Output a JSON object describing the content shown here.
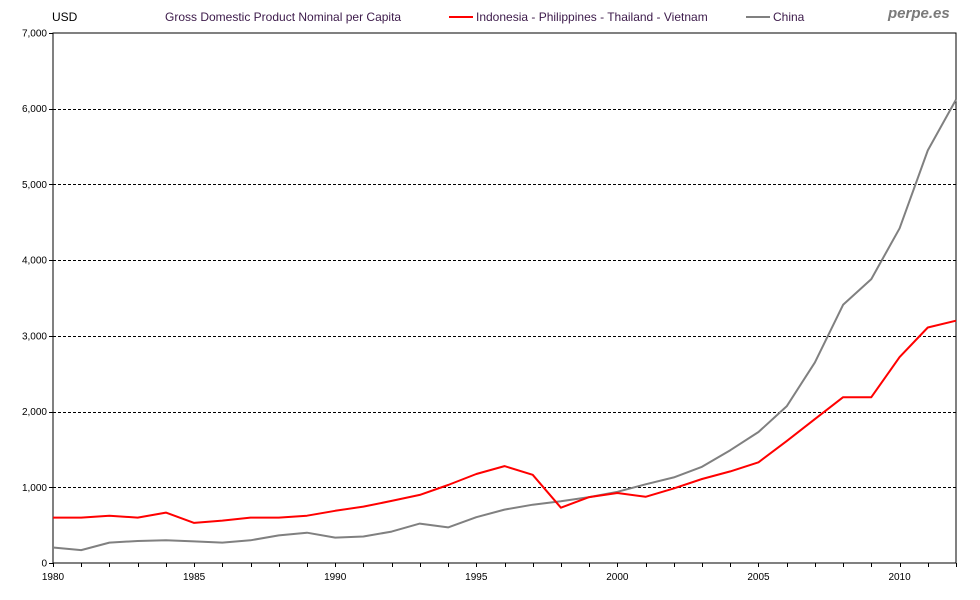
{
  "chart_data": {
    "type": "line",
    "title": "Gross Domestic Product Nominal per Capita",
    "ylabel": "USD",
    "xlabel": "",
    "xlim": [
      1980,
      2012
    ],
    "ylim": [
      0,
      7000
    ],
    "x_ticks": [
      1980,
      1985,
      1990,
      1995,
      2000,
      2005,
      2010
    ],
    "y_ticks": [
      0,
      1000,
      2000,
      3000,
      4000,
      5000,
      6000,
      7000
    ],
    "y_tick_labels": [
      "0",
      "1,000",
      "2,000",
      "3,000",
      "4,000",
      "5,000",
      "6,000",
      "7,000"
    ],
    "grid": "horizontal dashed",
    "legend_position": "top",
    "x": [
      1980,
      1981,
      1982,
      1983,
      1984,
      1985,
      1986,
      1987,
      1988,
      1989,
      1990,
      1991,
      1992,
      1993,
      1994,
      1995,
      1996,
      1997,
      1998,
      1999,
      2000,
      2001,
      2002,
      2003,
      2004,
      2005,
      2006,
      2007,
      2008,
      2009,
      2010,
      2011,
      2012
    ],
    "series": [
      {
        "name": "Indonesia - Philippines - Thailand - Vietnam",
        "color": "#ff0000",
        "values": [
          600,
          600,
          625,
          600,
          665,
          530,
          560,
          600,
          600,
          625,
          690,
          745,
          820,
          900,
          1030,
          1175,
          1280,
          1165,
          730,
          870,
          925,
          875,
          985,
          1110,
          1210,
          1330,
          1610,
          1900,
          2190,
          2190,
          2720,
          3110,
          3200
        ]
      },
      {
        "name": "China",
        "color": "#808080",
        "values": [
          205,
          170,
          270,
          290,
          300,
          285,
          270,
          300,
          365,
          400,
          335,
          350,
          415,
          520,
          470,
          605,
          705,
          770,
          815,
          870,
          940,
          1040,
          1130,
          1270,
          1490,
          1730,
          2070,
          2650,
          3410,
          3750,
          4420,
          5450,
          6120
        ]
      }
    ]
  },
  "brand": "perpe.es"
}
